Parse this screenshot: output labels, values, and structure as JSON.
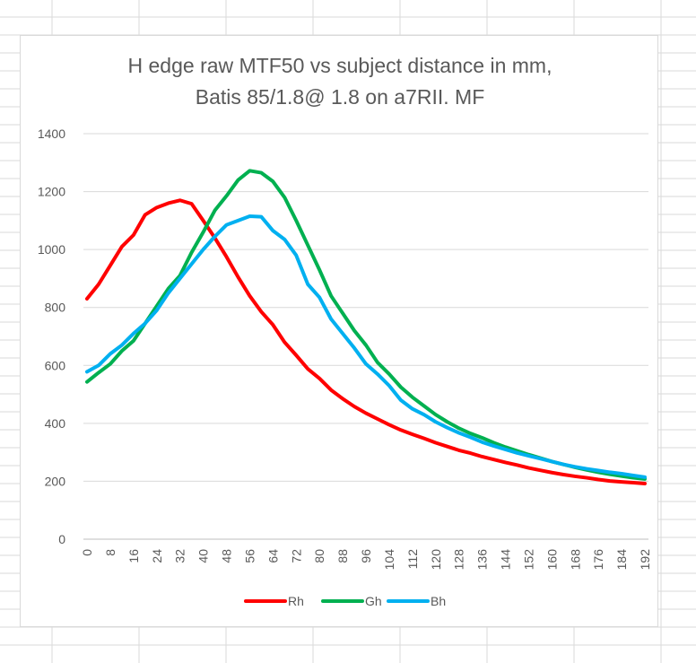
{
  "chart_data": {
    "type": "line",
    "title": [
      "H edge raw MTF50 vs subject distance in mm,",
      "Batis 85/1.8@ 1.8 on a7RII. MF"
    ],
    "xlabel": "",
    "ylabel": "",
    "x": [
      0,
      4,
      8,
      12,
      16,
      20,
      24,
      28,
      32,
      36,
      40,
      44,
      48,
      52,
      56,
      60,
      64,
      68,
      72,
      76,
      80,
      84,
      88,
      92,
      96,
      100,
      104,
      108,
      112,
      116,
      120,
      124,
      128,
      132,
      136,
      140,
      144,
      148,
      152,
      156,
      160,
      164,
      168,
      172,
      176,
      180,
      184,
      188,
      192
    ],
    "x_tick_labels": [
      "0",
      "8",
      "16",
      "24",
      "32",
      "40",
      "48",
      "56",
      "64",
      "72",
      "80",
      "88",
      "96",
      "104",
      "112",
      "120",
      "128",
      "136",
      "144",
      "152",
      "160",
      "168",
      "176",
      "184",
      "192"
    ],
    "ylim": [
      0,
      1400
    ],
    "y_ticks": [
      0,
      200,
      400,
      600,
      800,
      1000,
      1200,
      1400
    ],
    "grid": "horizontal",
    "legend_position": "bottom",
    "series": [
      {
        "name": "Rh",
        "color": "#ff0000",
        "values": [
          830,
          880,
          945,
          1010,
          1050,
          1120,
          1145,
          1160,
          1170,
          1158,
          1100,
          1040,
          975,
          905,
          840,
          785,
          740,
          680,
          635,
          588,
          555,
          515,
          485,
          458,
          435,
          415,
          395,
          377,
          362,
          348,
          333,
          320,
          307,
          297,
          285,
          275,
          265,
          256,
          246,
          238,
          230,
          223,
          217,
          212,
          206,
          201,
          198,
          195,
          192
        ]
      },
      {
        "name": "Gh",
        "color": "#00b050",
        "values": [
          543,
          575,
          605,
          650,
          685,
          745,
          805,
          865,
          910,
          990,
          1060,
          1135,
          1185,
          1240,
          1272,
          1265,
          1235,
          1180,
          1100,
          1015,
          930,
          840,
          780,
          720,
          670,
          610,
          570,
          525,
          490,
          460,
          430,
          405,
          383,
          365,
          350,
          333,
          318,
          305,
          292,
          280,
          268,
          258,
          248,
          239,
          231,
          224,
          218,
          212,
          208
        ]
      },
      {
        "name": "Bh",
        "color": "#00b0f0",
        "values": [
          578,
          600,
          640,
          670,
          710,
          745,
          790,
          850,
          900,
          950,
          1000,
          1045,
          1085,
          1100,
          1115,
          1113,
          1065,
          1035,
          980,
          880,
          835,
          760,
          710,
          660,
          605,
          570,
          530,
          480,
          450,
          430,
          405,
          385,
          367,
          352,
          335,
          322,
          310,
          298,
          288,
          278,
          268,
          258,
          250,
          243,
          237,
          231,
          226,
          220,
          214
        ]
      }
    ]
  }
}
